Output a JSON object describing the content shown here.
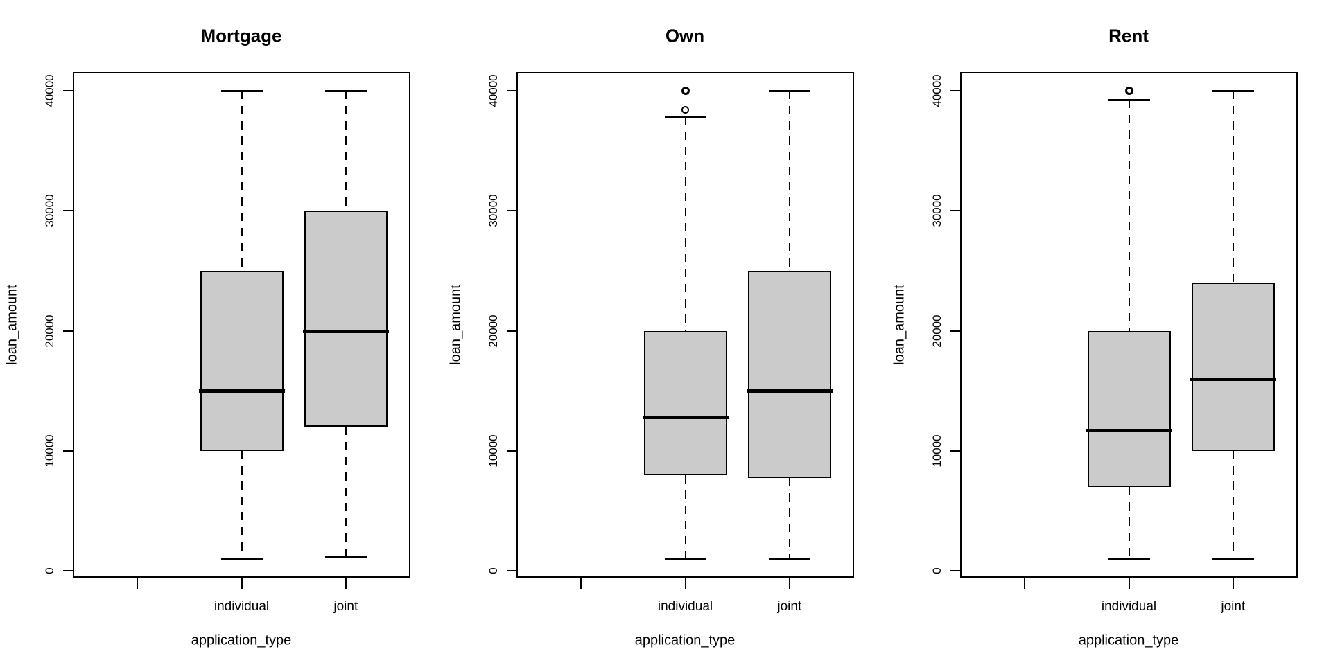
{
  "figure": {
    "background": "#ffffff",
    "box_fill": "#cbcbcb",
    "line_color": "#000000",
    "y_ticks": [
      0,
      10000,
      20000,
      30000,
      40000
    ],
    "y_tick_labels": [
      "0",
      "10000",
      "20000",
      "30000",
      "40000"
    ],
    "x_tick_labels": [
      "",
      "individual",
      "joint"
    ]
  },
  "chart_data": [
    {
      "type": "boxplot",
      "title": "Mortgage",
      "xlabel": "application_type",
      "ylabel": "loan_amount",
      "ylim": [
        0,
        40000
      ],
      "grid": false,
      "categories": [
        "individual",
        "joint"
      ],
      "boxes": [
        {
          "category": "individual",
          "whisker_low": 1000,
          "q1": 10000,
          "median": 15000,
          "q3": 25000,
          "whisker_high": 40000,
          "outliers": []
        },
        {
          "category": "joint",
          "whisker_low": 1200,
          "q1": 12000,
          "median": 20000,
          "q3": 30000,
          "whisker_high": 40000,
          "outliers": []
        }
      ]
    },
    {
      "type": "boxplot",
      "title": "Own",
      "xlabel": "application_type",
      "ylabel": "loan_amount",
      "ylim": [
        0,
        40000
      ],
      "grid": false,
      "categories": [
        "individual",
        "joint"
      ],
      "boxes": [
        {
          "category": "individual",
          "whisker_low": 1000,
          "q1": 8000,
          "median": 12800,
          "q3": 20000,
          "whisker_high": 37850,
          "outliers": [
            40000,
            40000,
            38400
          ]
        },
        {
          "category": "joint",
          "whisker_low": 1000,
          "q1": 7750,
          "median": 15000,
          "q3": 25000,
          "whisker_high": 40000,
          "outliers": []
        }
      ]
    },
    {
      "type": "boxplot",
      "title": "Rent",
      "xlabel": "application_type",
      "ylabel": "loan_amount",
      "ylim": [
        0,
        40000
      ],
      "grid": false,
      "categories": [
        "individual",
        "joint"
      ],
      "boxes": [
        {
          "category": "individual",
          "whisker_low": 1000,
          "q1": 7000,
          "median": 11750,
          "q3": 20000,
          "whisker_high": 39250,
          "outliers": [
            40000,
            40000
          ]
        },
        {
          "category": "joint",
          "whisker_low": 1000,
          "q1": 10000,
          "median": 16000,
          "q3": 24000,
          "whisker_high": 40000,
          "outliers": []
        }
      ]
    }
  ]
}
